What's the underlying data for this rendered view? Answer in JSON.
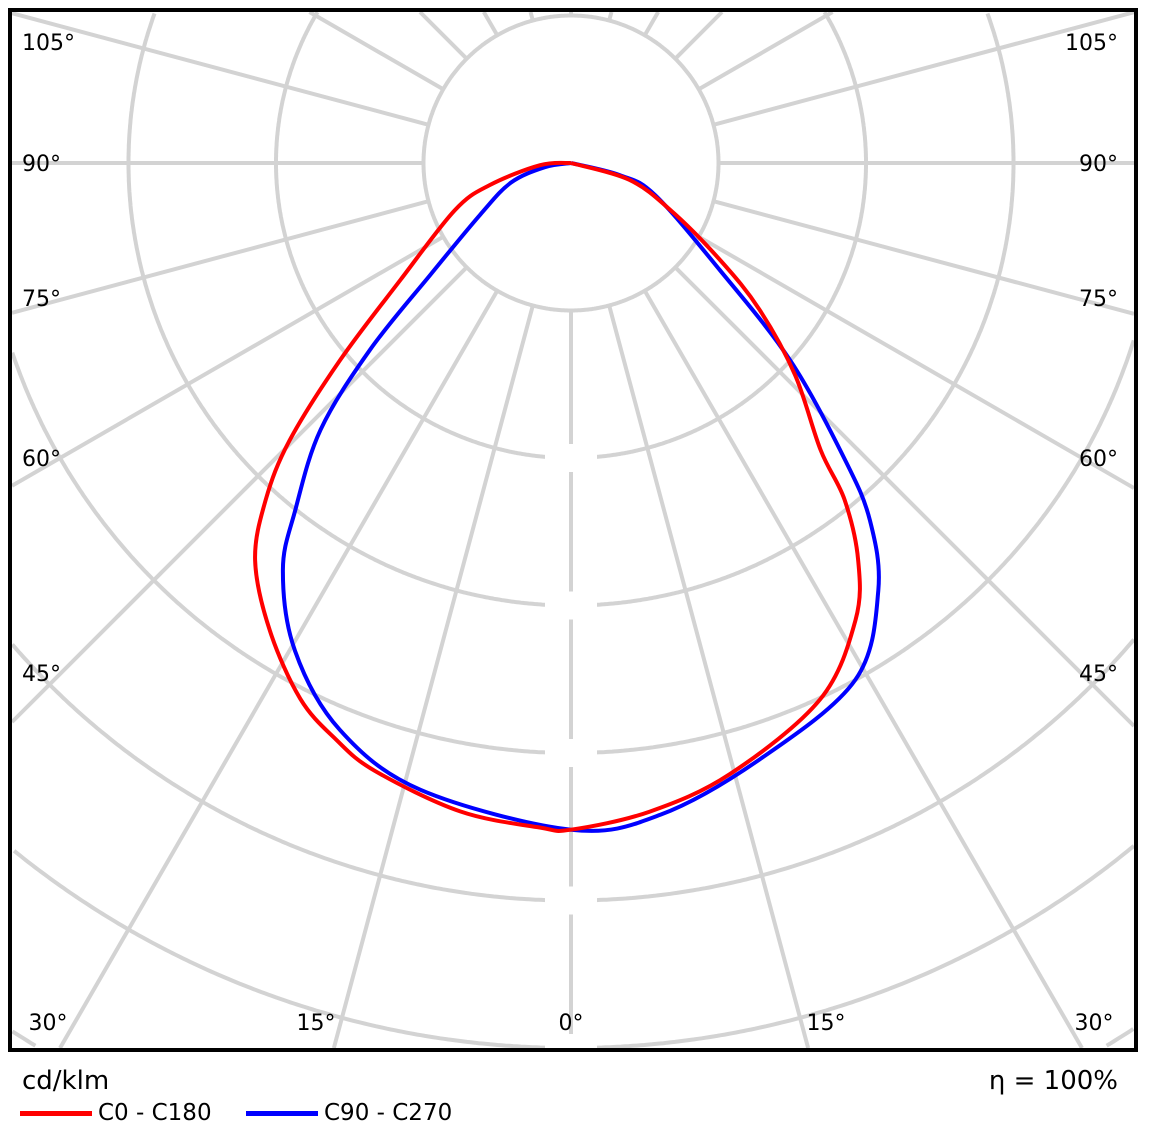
{
  "chart_data": {
    "type": "polar",
    "title": "",
    "unit_label": "cd/klm",
    "efficiency_label": "η = 100%",
    "radial_tick_labels": [],
    "angle_labels_side": [
      "105°",
      "90°",
      "75°",
      "60°",
      "45°"
    ],
    "angle_labels_bottom": [
      "30°",
      "15°",
      "0°",
      "15°",
      "30°"
    ],
    "grid": true,
    "legend_placement": "bottom-left",
    "series": [
      {
        "name": "C0 - C180",
        "color": "#ff0000",
        "c180_angles": [
          0,
          2.7,
          9.7,
          17.9,
          22.2,
          26.8,
          32.8,
          38.5,
          42.2,
          45.4,
          49.5,
          55.6,
          67.9,
          74.8,
          86,
          90
        ],
        "c180_values": [
          4.52,
          4.51,
          4.46,
          4.33,
          4.22,
          4.07,
          3.77,
          3.44,
          3.08,
          2.68,
          2.06,
          1.4,
          0.85,
          0.57,
          0.21,
          0.0
        ],
        "c0_angles": [
          0,
          6.9,
          14.6,
          24.9,
          31.9,
          35.9,
          39.1,
          41.0,
          46.6,
          52.1,
          56.9,
          64.6,
          74.0,
          90
        ],
        "c0_values": [
          4.52,
          4.43,
          4.28,
          4.01,
          3.65,
          3.32,
          2.94,
          2.58,
          2.09,
          1.62,
          1.21,
          0.75,
          0.41,
          0.0
        ]
      },
      {
        "name": "C90 - C270",
        "color": "#0000ff",
        "c270_angles": [
          0,
          13.5,
          22.2,
          29.5,
          35.3,
          38.5,
          43.2,
          47.1,
          51.5,
          60.3,
          71.8,
          81,
          90
        ],
        "c270_values": [
          4.52,
          4.37,
          4.15,
          3.8,
          3.38,
          3.0,
          2.48,
          1.86,
          1.22,
          0.71,
          0.43,
          0.18,
          0.0
        ],
        "c90_angles": [
          0,
          7.8,
          17.6,
          28.8,
          35.7,
          39.9,
          42.7,
          48.0,
          54.3,
          69.1,
          76.0,
          90
        ],
        "c90_values": [
          4.52,
          4.46,
          4.24,
          4.0,
          3.57,
          3.16,
          2.74,
          2.0,
          1.24,
          0.61,
          0.34,
          0.0
        ]
      }
    ]
  }
}
